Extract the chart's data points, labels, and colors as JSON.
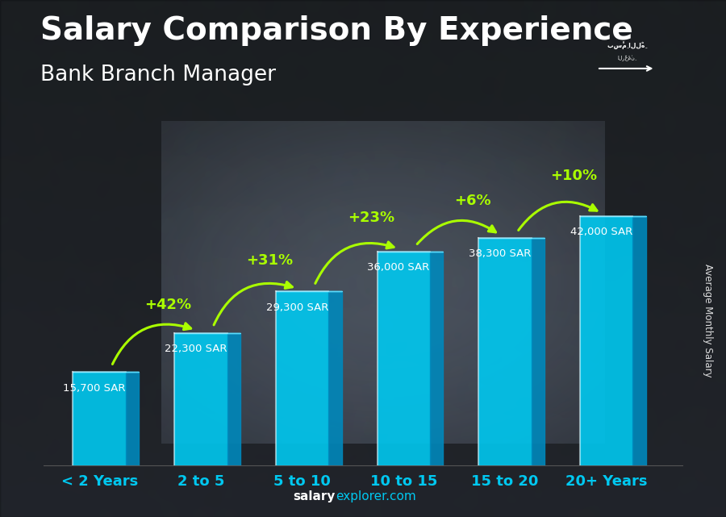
{
  "title": "Salary Comparison By Experience",
  "subtitle": "Bank Branch Manager",
  "categories": [
    "< 2 Years",
    "2 to 5",
    "5 to 10",
    "10 to 15",
    "15 to 20",
    "20+ Years"
  ],
  "values": [
    15700,
    22300,
    29300,
    36000,
    38300,
    42000
  ],
  "salary_labels": [
    "15,700 SAR",
    "22,300 SAR",
    "29,300 SAR",
    "36,000 SAR",
    "38,300 SAR",
    "42,000 SAR"
  ],
  "pct_labels": [
    "+42%",
    "+31%",
    "+23%",
    "+6%",
    "+10%"
  ],
  "bar_face_color": "#00C8F0",
  "bar_side_color": "#0088BB",
  "bar_top_color": "#60E0FF",
  "bar_width": 0.52,
  "bar_depth": 0.13,
  "title_fontsize": 28,
  "subtitle_fontsize": 19,
  "tick_fontsize": 13,
  "ylabel": "Average Monthly Salary",
  "footer_bold": "salary",
  "footer_normal": "explorer.com",
  "pct_color": "#AAFF00",
  "salary_color": "#FFFFFF",
  "xlim": [
    -0.55,
    5.75
  ],
  "ylim": [
    0,
    54000
  ],
  "flag_color": "#4CAF50"
}
